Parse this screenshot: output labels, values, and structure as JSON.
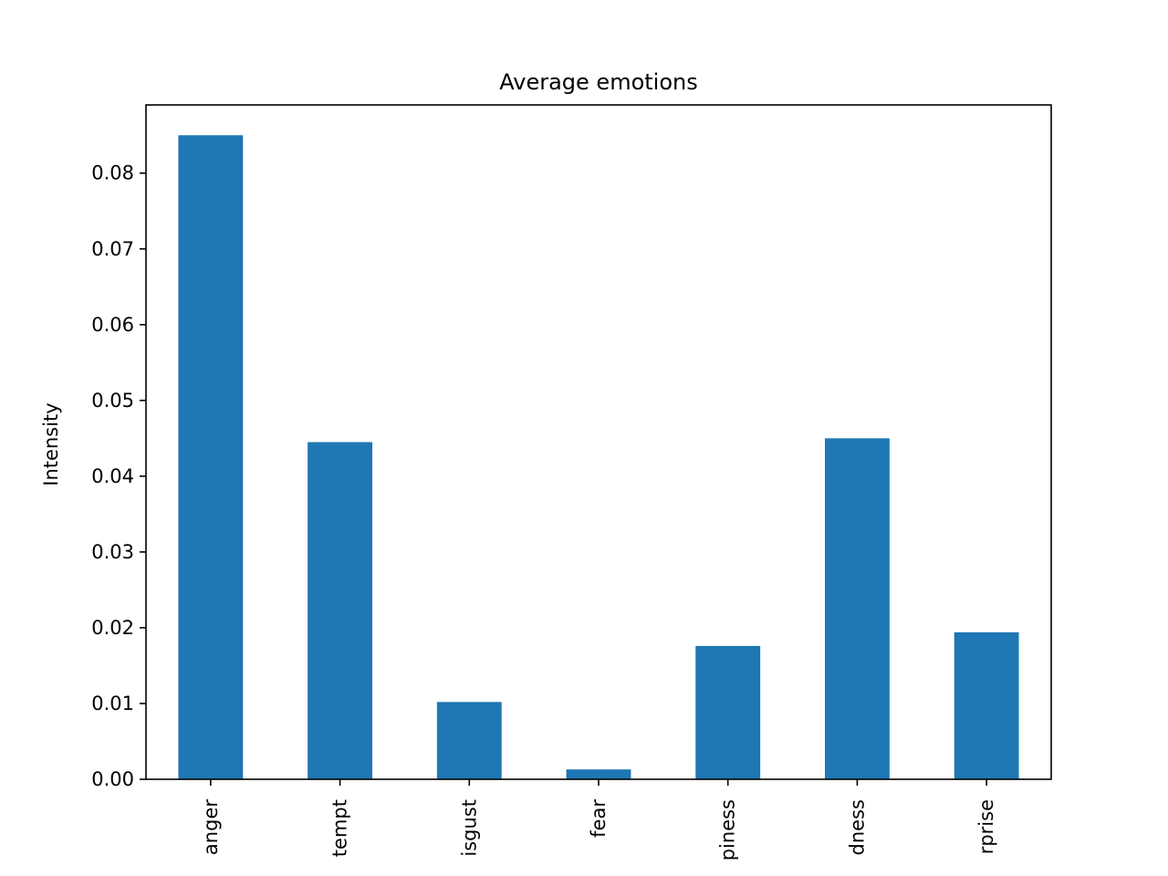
{
  "chart_data": {
    "type": "bar",
    "title": "Average emotions",
    "xlabel": "",
    "ylabel": "Intensity",
    "categories": [
      "anger",
      "contempt",
      "disgust",
      "fear",
      "happiness",
      "sadness",
      "surprise"
    ],
    "tick_labels_visible": [
      "anger",
      "tempt",
      "isgust",
      "fear",
      "piness",
      "dness",
      "rprise"
    ],
    "values": [
      0.085,
      0.0445,
      0.0102,
      0.0013,
      0.0176,
      0.045,
      0.0194
    ],
    "ylim": [
      0,
      0.089
    ],
    "yticks": [
      0.0,
      0.01,
      0.02,
      0.03,
      0.04,
      0.05,
      0.06,
      0.07,
      0.08
    ],
    "ytick_labels": [
      "0.00",
      "0.01",
      "0.02",
      "0.03",
      "0.04",
      "0.05",
      "0.06",
      "0.07",
      "0.08"
    ],
    "bar_color": "#1f77b4",
    "grid": false,
    "legend": "none"
  }
}
